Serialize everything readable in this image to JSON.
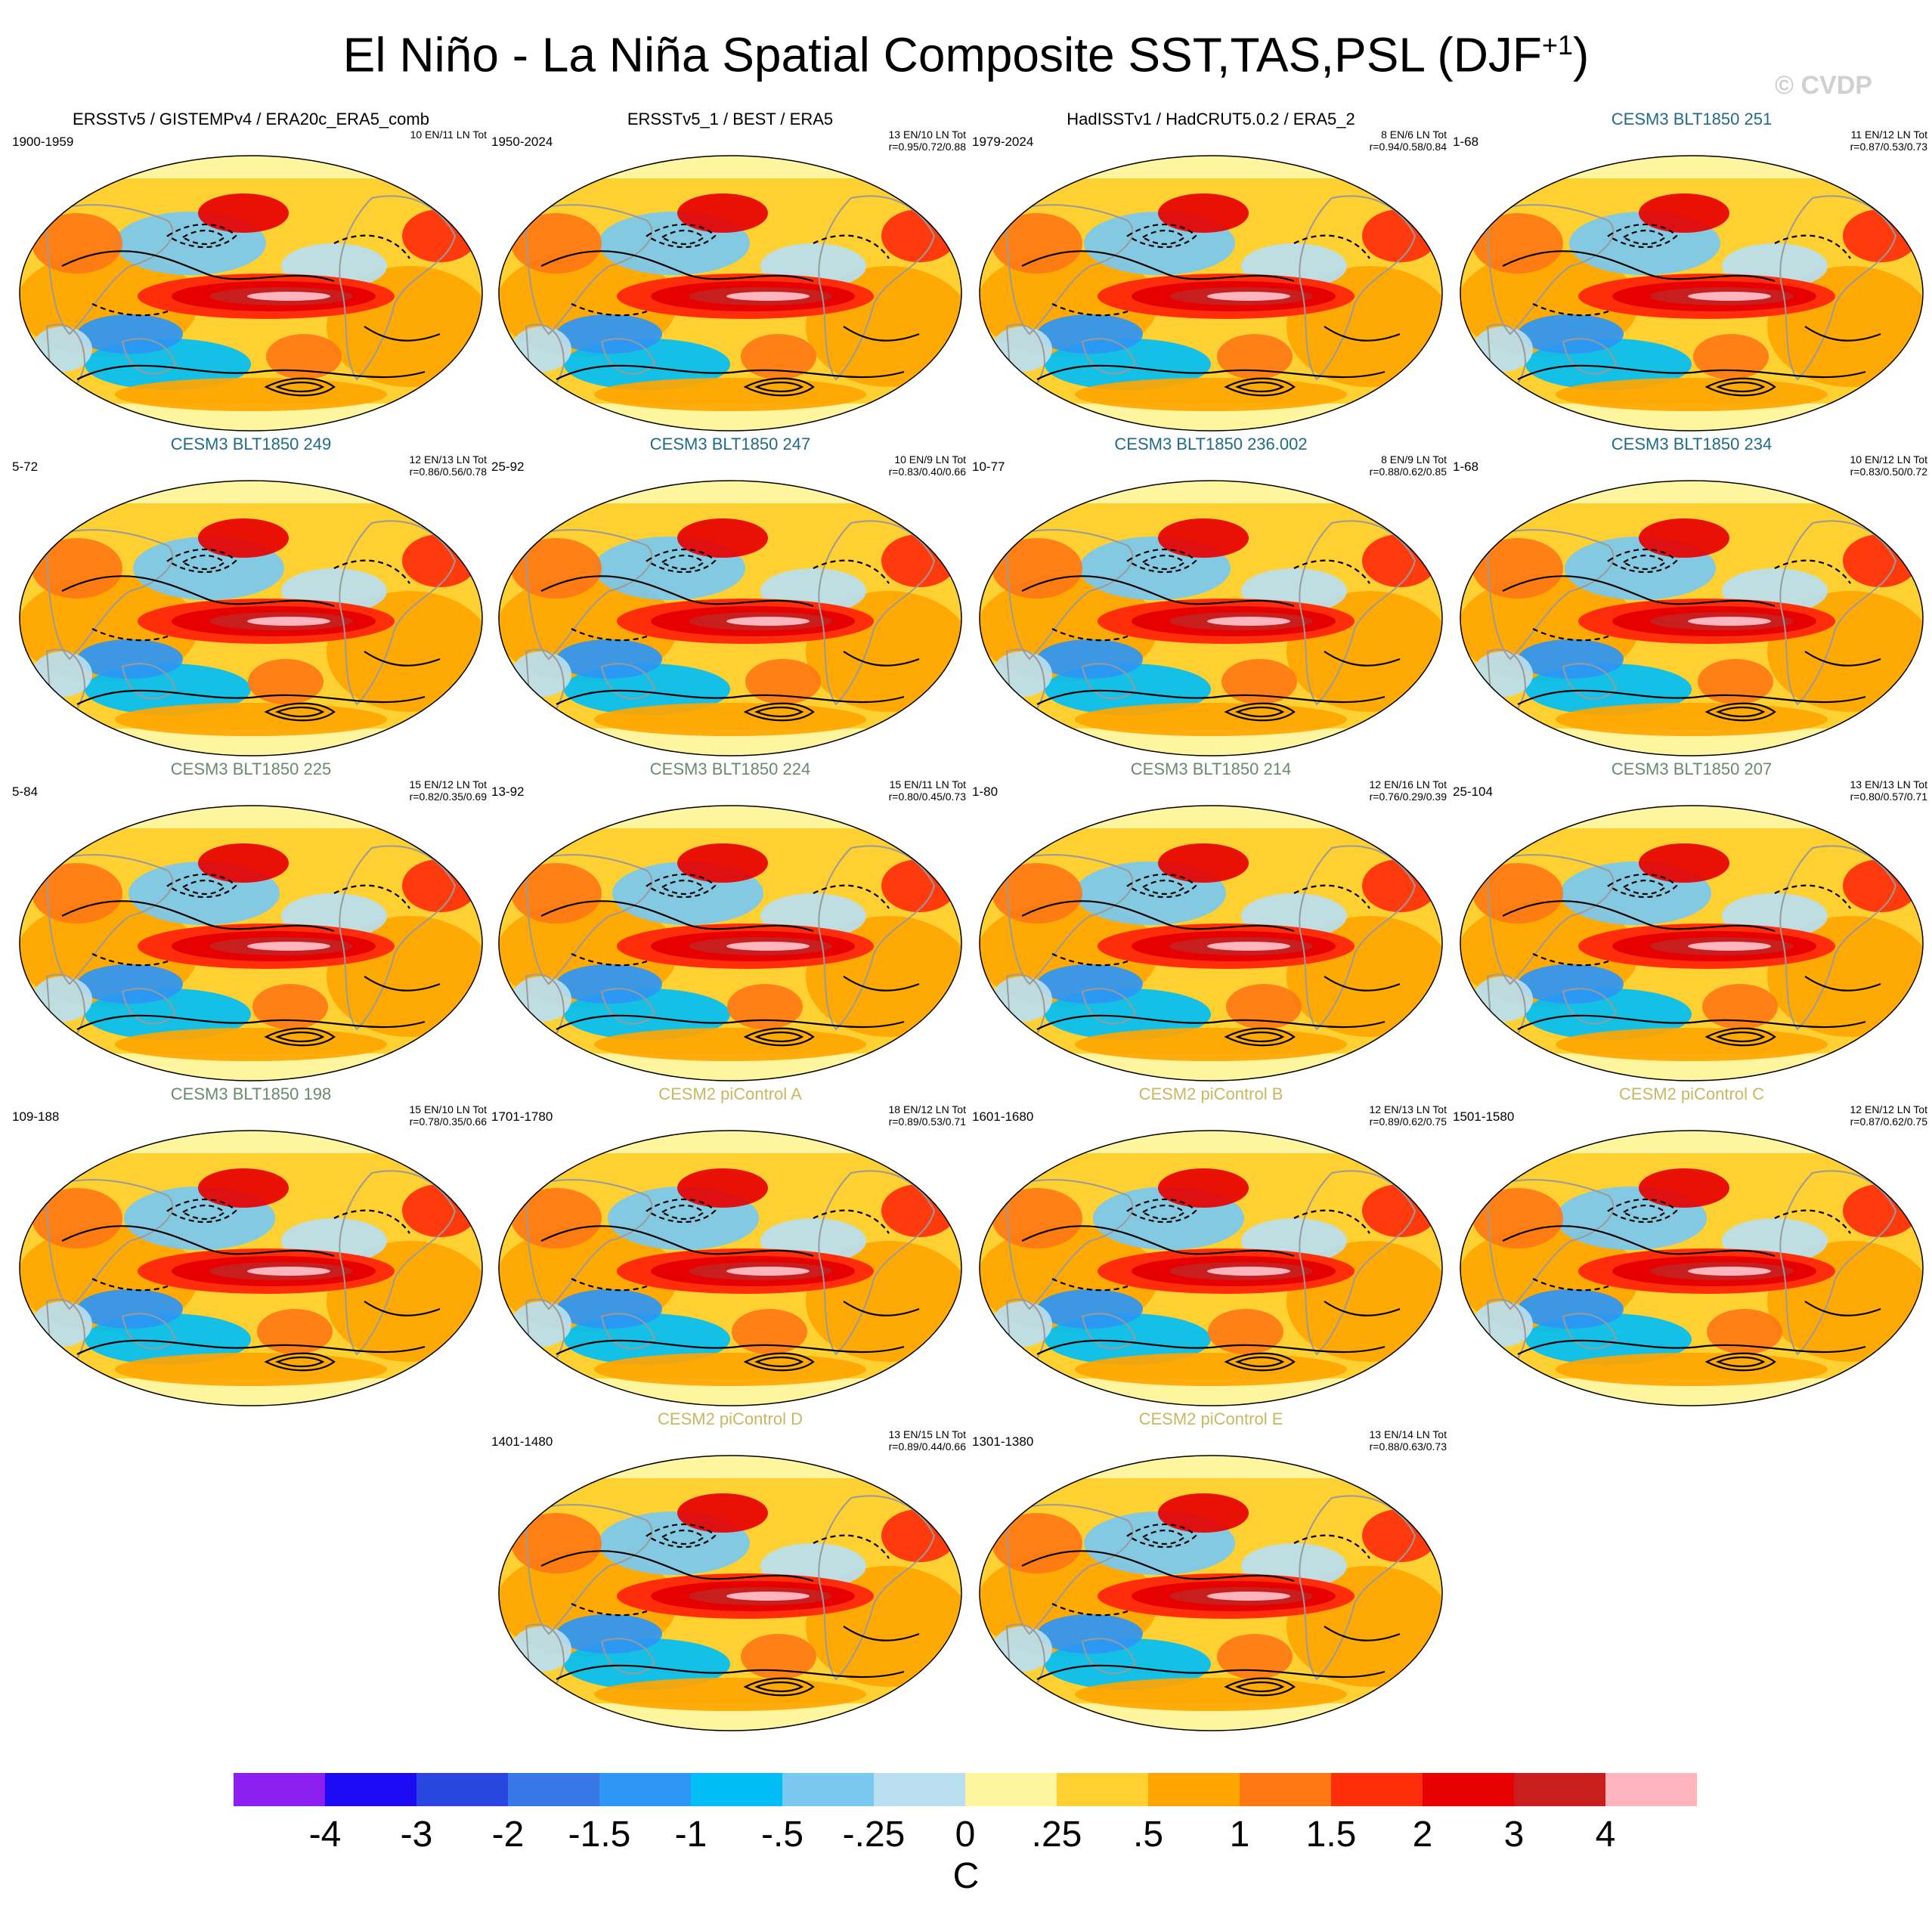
{
  "header": {
    "title_main": "El Niño - La Niña Spatial Composite SST,TAS,PSL (DJF",
    "title_sup": "+1",
    "title_close": ")",
    "copyright": "© CVDP"
  },
  "colors": {
    "obs_title": "#000000",
    "cesm3_251_234": "#1f6b8a",
    "cesm3_225_198": "#6a8a70",
    "cesm2": "#c8b860",
    "land_outline": "#9a9a9a",
    "contour": "#000000"
  },
  "panels": [
    {
      "title": "ERSSTv5 / GISTEMPv4 / ERA20c_ERA5_comb",
      "years": "1900-1959",
      "counts": "10 EN/11 LN Tot",
      "corr": "",
      "style": "obs"
    },
    {
      "title": "ERSSTv5_1 / BEST / ERA5",
      "years": "1950-2024",
      "counts": "13 EN/10 LN Tot",
      "corr": "r=0.95/0.72/0.88",
      "style": "obs"
    },
    {
      "title": "HadISSTv1 / HadCRUT5.0.2 / ERA5_2",
      "years": "1979-2024",
      "counts": "8 EN/6 LN Tot",
      "corr": "r=0.94/0.58/0.84",
      "style": "obs"
    },
    {
      "title": "CESM3 BLT1850 251",
      "years": "1-68",
      "counts": "11 EN/12 LN Tot",
      "corr": "r=0.87/0.53/0.73",
      "style": "c3a"
    },
    {
      "title": "CESM3 BLT1850 249",
      "years": "5-72",
      "counts": "12 EN/13 LN Tot",
      "corr": "r=0.86/0.56/0.78",
      "style": "c3a"
    },
    {
      "title": "CESM3 BLT1850 247",
      "years": "25-92",
      "counts": "10 EN/9 LN Tot",
      "corr": "r=0.83/0.40/0.66",
      "style": "c3a"
    },
    {
      "title": "CESM3 BLT1850 236.002",
      "years": "10-77",
      "counts": "8 EN/9 LN Tot",
      "corr": "r=0.88/0.62/0.85",
      "style": "c3a"
    },
    {
      "title": "CESM3 BLT1850 234",
      "years": "1-68",
      "counts": "10 EN/12 LN Tot",
      "corr": "r=0.83/0.50/0.72",
      "style": "c3a"
    },
    {
      "title": "CESM3 BLT1850 225",
      "years": "5-84",
      "counts": "15 EN/12 LN Tot",
      "corr": "r=0.82/0.35/0.69",
      "style": "c3b"
    },
    {
      "title": "CESM3 BLT1850 224",
      "years": "13-92",
      "counts": "15 EN/11 LN Tot",
      "corr": "r=0.80/0.45/0.73",
      "style": "c3b"
    },
    {
      "title": "CESM3 BLT1850 214",
      "years": "1-80",
      "counts": "12 EN/16 LN Tot",
      "corr": "r=0.76/0.29/0.39",
      "style": "c3b"
    },
    {
      "title": "CESM3 BLT1850 207",
      "years": "25-104",
      "counts": "13 EN/13 LN Tot",
      "corr": "r=0.80/0.57/0.71",
      "style": "c3b"
    },
    {
      "title": "CESM3 BLT1850 198",
      "years": "109-188",
      "counts": "15 EN/10 LN Tot",
      "corr": "r=0.78/0.35/0.66",
      "style": "c3b"
    },
    {
      "title": "CESM2 piControl A",
      "years": "1701-1780",
      "counts": "18 EN/12 LN Tot",
      "corr": "r=0.89/0.53/0.71",
      "style": "c2"
    },
    {
      "title": "CESM2 piControl B",
      "years": "1601-1680",
      "counts": "12 EN/13 LN Tot",
      "corr": "r=0.89/0.62/0.75",
      "style": "c2"
    },
    {
      "title": "CESM2 piControl C",
      "years": "1501-1580",
      "counts": "12 EN/12 LN Tot",
      "corr": "r=0.87/0.62/0.75",
      "style": "c2"
    },
    {
      "title": "CESM2 piControl D",
      "years": "1401-1480",
      "counts": "13 EN/15 LN Tot",
      "corr": "r=0.89/0.44/0.66",
      "style": "c2"
    },
    {
      "title": "CESM2 piControl E",
      "years": "1301-1380",
      "counts": "13 EN/14 LN Tot",
      "corr": "r=0.88/0.63/0.73",
      "style": "c2"
    }
  ],
  "colorbar": {
    "colors": [
      "#8c1ef0",
      "#1e0af5",
      "#2a46e0",
      "#3878e6",
      "#2e96f5",
      "#00bef5",
      "#78c8f0",
      "#b9def0",
      "#fff59e",
      "#ffd032",
      "#ffa500",
      "#ff7814",
      "#ff2d0a",
      "#e60000",
      "#c81e1e",
      "#ffb4be"
    ],
    "labels": [
      "-4",
      "-3",
      "-2",
      "-1.5",
      "-1",
      "-.5",
      "-.25",
      "0",
      ".25",
      ".5",
      "1",
      "1.5",
      "2",
      "3",
      "4"
    ],
    "unit": "C"
  }
}
